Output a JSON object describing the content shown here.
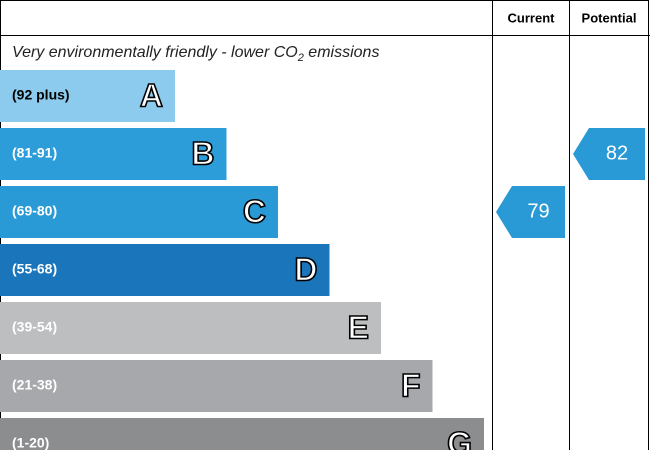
{
  "header": {
    "current": "Current",
    "potential": "Potential"
  },
  "top_note": {
    "before": "Very environmentally friendly - lower CO",
    "subscript": "2",
    "after": " emissions"
  },
  "bands": [
    {
      "range": "(92 plus)",
      "letter": "A",
      "color": "#8ccbee",
      "text_color": "#000000"
    },
    {
      "range": "(81-91)",
      "letter": "B",
      "color": "#2d9dd9",
      "text_color": "#ffffff"
    },
    {
      "range": "(69-80)",
      "letter": "C",
      "color": "#2a9ad6",
      "text_color": "#ffffff"
    },
    {
      "range": "(55-68)",
      "letter": "D",
      "color": "#1b75bb",
      "text_color": "#ffffff"
    },
    {
      "range": "(39-54)",
      "letter": "E",
      "color": "#bcbec0",
      "text_color": "#ffffff"
    },
    {
      "range": "(21-38)",
      "letter": "F",
      "color": "#a6a8ab",
      "text_color": "#ffffff"
    },
    {
      "range": "(1-20)",
      "letter": "G",
      "color": "#8c8d8f",
      "text_color": "#ffffff"
    }
  ],
  "current": 79,
  "potential": 82,
  "marker_color": "#2a9ad6"
}
